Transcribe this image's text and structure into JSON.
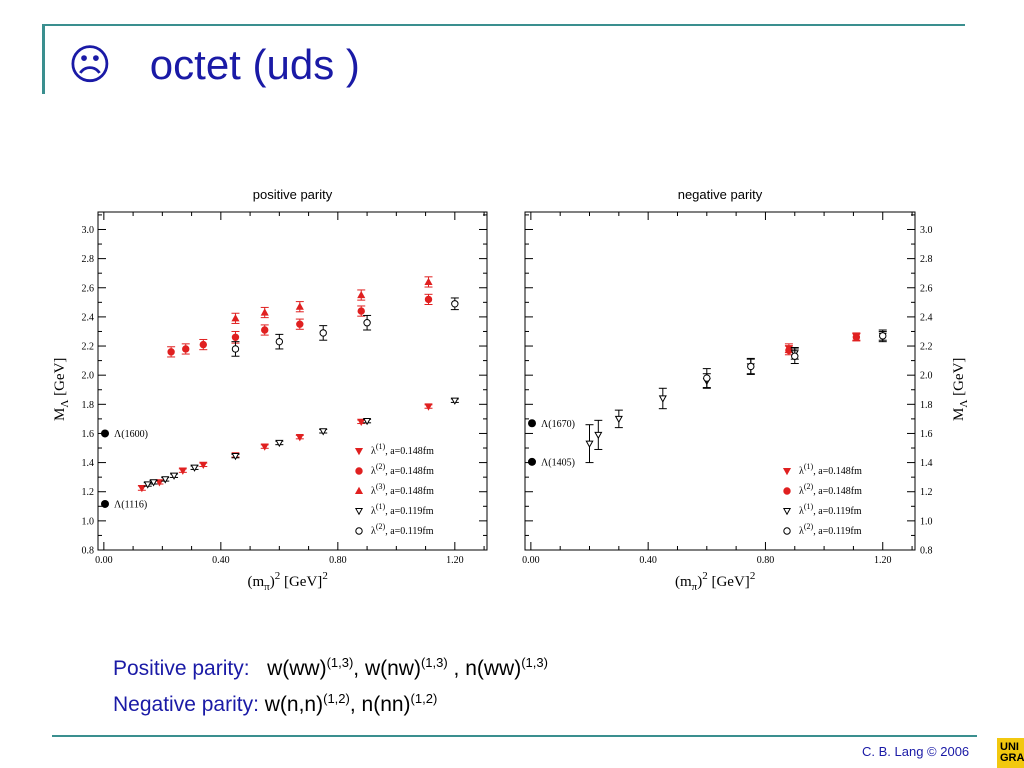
{
  "slide": {
    "title_icon": "☹",
    "title": "octet (uds )",
    "caption_positive_label": "Positive parity:",
    "caption_positive_items": [
      {
        "name": "w(ww)",
        "sup": "(1,3)",
        "sep": ", "
      },
      {
        "name": "w(nw)",
        "sup": "(1,3)",
        "sep": " , "
      },
      {
        "name": "n(ww)",
        "sup": "(1,3)",
        "sep": ""
      }
    ],
    "caption_negative_label": "Negative parity:",
    "caption_negative_items": [
      {
        "name": "w(n,n)",
        "sup": "(1,2)",
        "sep": ", "
      },
      {
        "name": "n(nn)",
        "sup": "(1,2)",
        "sep": ""
      }
    ],
    "footer": "C. B. Lang © 2006",
    "logo_text": "UNI GRAZ",
    "theme_color": "#3a8f8f",
    "text_color": "#1a1aa6"
  },
  "chart_data": [
    {
      "type": "scatter",
      "title": "positive parity",
      "xlabel_base": "(m",
      "xlabel_sub": "π",
      "xlabel_mid": ")",
      "xlabel_sup": "2",
      "xlabel_unit": " [GeV]",
      "xlabel_unit_sup": "2",
      "ylabel_base": "M",
      "ylabel_sub": "Λ",
      "ylabel_unit": " [GeV]",
      "xlim": [
        -0.02,
        1.31
      ],
      "ylim": [
        0.8,
        3.12
      ],
      "xticks": [
        "0.00",
        "0.40",
        "0.80",
        "1.20"
      ],
      "yticks": [
        "0.8",
        "1.0",
        "1.2",
        "1.4",
        "1.6",
        "1.8",
        "2.0",
        "2.2",
        "2.4",
        "2.6",
        "2.8",
        "3.0"
      ],
      "ytick_side": "left",
      "legend_position": "bottom-right",
      "reference_states": [
        {
          "label": "Λ(1600)",
          "y": 1.6
        },
        {
          "label": "Λ(1116)",
          "y": 1.116
        }
      ],
      "series": [
        {
          "name": "λ",
          "sup": "(1)",
          "suffix": ", a=0.148fm",
          "marker": "triangle-down",
          "filled": true,
          "color": "#e02020",
          "points": [
            [
              0.13,
              1.225,
              0.015
            ],
            [
              0.19,
              1.265,
              0.012
            ],
            [
              0.27,
              1.345,
              0.012
            ],
            [
              0.34,
              1.385,
              0.012
            ],
            [
              0.45,
              1.45,
              0.012
            ],
            [
              0.55,
              1.51,
              0.012
            ],
            [
              0.67,
              1.575,
              0.012
            ],
            [
              0.88,
              1.68,
              0.012
            ],
            [
              1.11,
              1.785,
              0.012
            ]
          ]
        },
        {
          "name": "λ",
          "sup": "(2)",
          "suffix": ", a=0.148fm",
          "marker": "circle",
          "filled": true,
          "color": "#e02020",
          "points": [
            [
              0.23,
              2.16,
              0.035
            ],
            [
              0.28,
              2.18,
              0.035
            ],
            [
              0.34,
              2.21,
              0.035
            ],
            [
              0.45,
              2.26,
              0.04
            ],
            [
              0.55,
              2.31,
              0.035
            ],
            [
              0.67,
              2.35,
              0.035
            ],
            [
              0.88,
              2.44,
              0.035
            ],
            [
              1.11,
              2.52,
              0.035
            ]
          ]
        },
        {
          "name": "λ",
          "sup": "(3)",
          "suffix": ", a=0.148fm",
          "marker": "triangle-up",
          "filled": true,
          "color": "#e02020",
          "points": [
            [
              0.45,
              2.39,
              0.035
            ],
            [
              0.55,
              2.43,
              0.035
            ],
            [
              0.67,
              2.47,
              0.035
            ],
            [
              0.88,
              2.55,
              0.035
            ],
            [
              1.11,
              2.64,
              0.035
            ]
          ]
        },
        {
          "name": "λ",
          "sup": "(1)",
          "suffix": ", a=0.119fm",
          "marker": "triangle-down",
          "filled": false,
          "color": "#000000",
          "points": [
            [
              0.15,
              1.25,
              0.012
            ],
            [
              0.17,
              1.265,
              0.012
            ],
            [
              0.21,
              1.285,
              0.012
            ],
            [
              0.24,
              1.31,
              0.012
            ],
            [
              0.31,
              1.365,
              0.012
            ],
            [
              0.45,
              1.445,
              0.012
            ],
            [
              0.6,
              1.535,
              0.012
            ],
            [
              0.75,
              1.615,
              0.012
            ],
            [
              0.9,
              1.685,
              0.012
            ],
            [
              1.2,
              1.825,
              0.012
            ]
          ]
        },
        {
          "name": "λ",
          "sup": "(2)",
          "suffix": ", a=0.119fm",
          "marker": "circle",
          "filled": false,
          "color": "#000000",
          "points": [
            [
              0.45,
              2.18,
              0.05
            ],
            [
              0.6,
              2.23,
              0.05
            ],
            [
              0.75,
              2.29,
              0.05
            ],
            [
              0.9,
              2.36,
              0.05
            ],
            [
              1.2,
              2.49,
              0.04
            ]
          ]
        }
      ]
    },
    {
      "type": "scatter",
      "title": "negative parity",
      "xlabel_base": "(m",
      "xlabel_sub": "π",
      "xlabel_mid": ")",
      "xlabel_sup": "2",
      "xlabel_unit": " [GeV]",
      "xlabel_unit_sup": "2",
      "ylabel_base": "M",
      "ylabel_sub": "Λ",
      "ylabel_unit": " [GeV]",
      "xlim": [
        -0.02,
        1.31
      ],
      "ylim": [
        0.8,
        3.12
      ],
      "xticks": [
        "0.00",
        "0.40",
        "0.80",
        "1.20"
      ],
      "yticks": [
        "0.8",
        "1.0",
        "1.2",
        "1.4",
        "1.6",
        "1.8",
        "2.0",
        "2.2",
        "2.4",
        "2.6",
        "2.8",
        "3.0"
      ],
      "ytick_side": "right",
      "legend_position": "bottom-right",
      "reference_states": [
        {
          "label": "Λ(1670)",
          "y": 1.67
        },
        {
          "label": "Λ(1405)",
          "y": 1.405
        }
      ],
      "series": [
        {
          "name": "λ",
          "sup": "(1)",
          "suffix": ", a=0.148fm",
          "marker": "triangle-down",
          "filled": true,
          "color": "#e02020",
          "points": [
            [
              0.88,
              2.185,
              0.03
            ],
            [
              1.11,
              2.265,
              0.025
            ]
          ]
        },
        {
          "name": "λ",
          "sup": "(2)",
          "suffix": ", a=0.148fm",
          "marker": "circle",
          "filled": true,
          "color": "#e02020",
          "points": [
            [
              0.88,
              2.17,
              0.03
            ],
            [
              1.11,
              2.26,
              0.025
            ]
          ]
        },
        {
          "name": "λ",
          "sup": "(1)",
          "suffix": ", a=0.119fm",
          "marker": "triangle-down",
          "filled": false,
          "color": "#000000",
          "points": [
            [
              0.2,
              1.53,
              0.13
            ],
            [
              0.23,
              1.59,
              0.1
            ],
            [
              0.3,
              1.7,
              0.06
            ],
            [
              0.45,
              1.84,
              0.07
            ],
            [
              0.6,
              1.96,
              0.05
            ],
            [
              0.75,
              2.06,
              0.05
            ],
            [
              0.9,
              2.15,
              0.04
            ],
            [
              1.2,
              2.27,
              0.03
            ]
          ]
        },
        {
          "name": "λ",
          "sup": "(2)",
          "suffix": ", a=0.119fm",
          "marker": "circle",
          "filled": false,
          "color": "#000000",
          "points": [
            [
              0.6,
              1.98,
              0.065
            ],
            [
              0.75,
              2.06,
              0.055
            ],
            [
              0.9,
              2.13,
              0.05
            ],
            [
              1.2,
              2.27,
              0.04
            ]
          ]
        }
      ]
    }
  ]
}
